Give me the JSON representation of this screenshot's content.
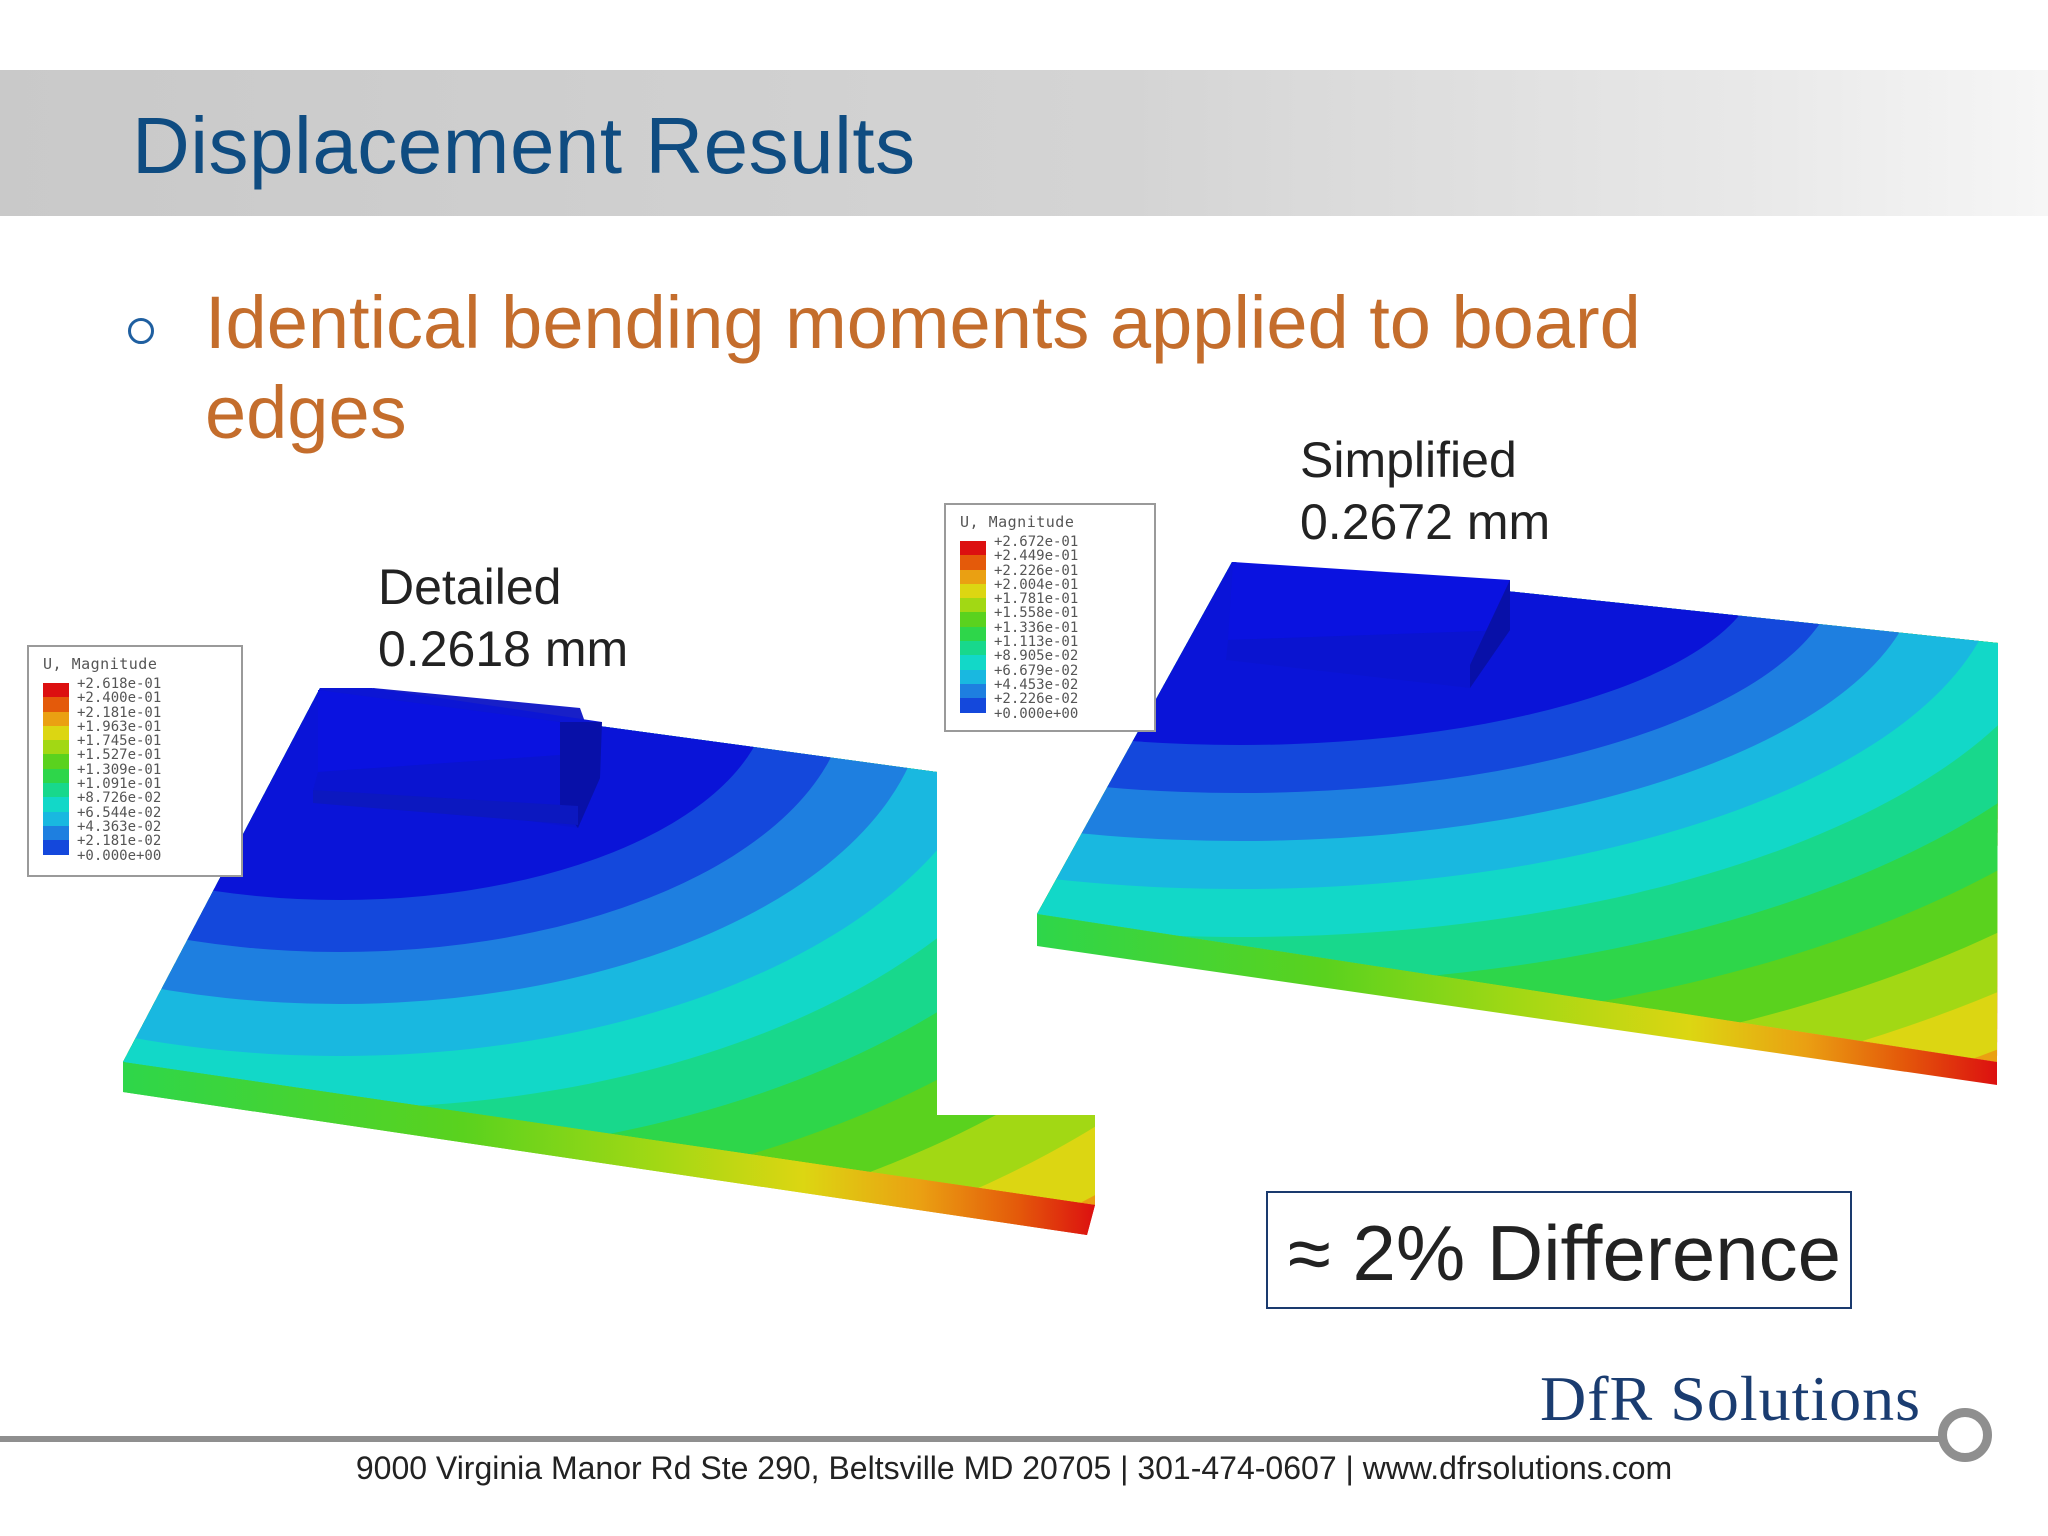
{
  "slide": {
    "title": "Displacement Results",
    "bullet": "Identical bending moments applied to board edges"
  },
  "figures": {
    "detailed": {
      "label": "Detailed",
      "value": "0.2618 mm",
      "legend_title": "U, Magnitude",
      "legend_values": [
        "+2.618e-01",
        "+2.400e-01",
        "+2.181e-01",
        "+1.963e-01",
        "+1.745e-01",
        "+1.527e-01",
        "+1.309e-01",
        "+1.091e-01",
        "+8.726e-02",
        "+6.544e-02",
        "+4.363e-02",
        "+2.181e-02",
        "+0.000e+00"
      ]
    },
    "simplified": {
      "label": "Simplified",
      "value": "0.2672 mm",
      "legend_title": "U, Magnitude",
      "legend_values": [
        "+2.672e-01",
        "+2.449e-01",
        "+2.226e-01",
        "+2.004e-01",
        "+1.781e-01",
        "+1.558e-01",
        "+1.336e-01",
        "+1.113e-01",
        "+8.905e-02",
        "+6.679e-02",
        "+4.453e-02",
        "+2.226e-02",
        "+0.000e+00"
      ]
    }
  },
  "contour_colors": [
    "#0a14d8",
    "#1448dc",
    "#1e7fe0",
    "#19b8e0",
    "#12d8c8",
    "#18d88c",
    "#2ed64a",
    "#5ad21e",
    "#a2d814",
    "#dcd612",
    "#eaa012",
    "#e45a0a",
    "#dc1010"
  ],
  "difference": "≈ 2% Difference",
  "logo": "DfR Solutions",
  "footer": "9000 Virginia Manor Rd Ste 290, Beltsville MD 20705 | 301-474-0607 | www.dfrsolutions.com"
}
